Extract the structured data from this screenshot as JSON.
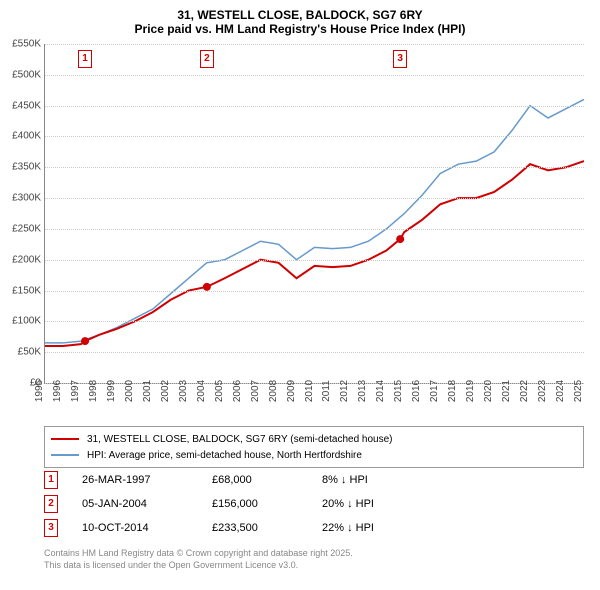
{
  "title_line1": "31, WESTELL CLOSE, BALDOCK, SG7 6RY",
  "title_line2": "Price paid vs. HM Land Registry's House Price Index (HPI)",
  "chart": {
    "type": "line",
    "background_color": "#ffffff",
    "grid_color": "#cccccc",
    "axis_color": "#888888",
    "x_range": [
      1995,
      2025
    ],
    "y_range": [
      0,
      550000
    ],
    "y_ticks": [
      0,
      50000,
      100000,
      150000,
      200000,
      250000,
      300000,
      350000,
      400000,
      450000,
      500000,
      550000
    ],
    "y_tick_labels": [
      "£0",
      "£50K",
      "£100K",
      "£150K",
      "£200K",
      "£250K",
      "£300K",
      "£350K",
      "£400K",
      "£450K",
      "£500K",
      "£550K"
    ],
    "x_ticks": [
      1995,
      1996,
      1997,
      1998,
      1999,
      2000,
      2001,
      2002,
      2003,
      2004,
      2005,
      2006,
      2007,
      2008,
      2009,
      2010,
      2011,
      2012,
      2013,
      2014,
      2015,
      2016,
      2017,
      2018,
      2019,
      2020,
      2021,
      2022,
      2023,
      2024,
      2025
    ],
    "series": [
      {
        "name": "price_paid",
        "label": "31, WESTELL CLOSE, BALDOCK, SG7 6RY (semi-detached house)",
        "color": "#d00000",
        "width": 2,
        "points": [
          [
            1995,
            60000
          ],
          [
            1996,
            60000
          ],
          [
            1997,
            63000
          ],
          [
            1997.23,
            68000
          ],
          [
            1998,
            78000
          ],
          [
            1999,
            88000
          ],
          [
            2000,
            100000
          ],
          [
            2001,
            115000
          ],
          [
            2002,
            135000
          ],
          [
            2003,
            150000
          ],
          [
            2004.01,
            156000
          ],
          [
            2005,
            170000
          ],
          [
            2006,
            185000
          ],
          [
            2007,
            200000
          ],
          [
            2008,
            195000
          ],
          [
            2009,
            170000
          ],
          [
            2010,
            190000
          ],
          [
            2011,
            188000
          ],
          [
            2012,
            190000
          ],
          [
            2013,
            200000
          ],
          [
            2014,
            215000
          ],
          [
            2014.77,
            233500
          ],
          [
            2015,
            245000
          ],
          [
            2016,
            265000
          ],
          [
            2017,
            290000
          ],
          [
            2018,
            300000
          ],
          [
            2019,
            300000
          ],
          [
            2020,
            310000
          ],
          [
            2021,
            330000
          ],
          [
            2022,
            355000
          ],
          [
            2023,
            345000
          ],
          [
            2024,
            350000
          ],
          [
            2025,
            360000
          ]
        ]
      },
      {
        "name": "hpi",
        "label": "HPI: Average price, semi-detached house, North Hertfordshire",
        "color": "#6699cc",
        "width": 1.5,
        "points": [
          [
            1995,
            65000
          ],
          [
            1996,
            65000
          ],
          [
            1997,
            68000
          ],
          [
            1998,
            78000
          ],
          [
            1999,
            90000
          ],
          [
            2000,
            105000
          ],
          [
            2001,
            120000
          ],
          [
            2002,
            145000
          ],
          [
            2003,
            170000
          ],
          [
            2004,
            195000
          ],
          [
            2005,
            200000
          ],
          [
            2006,
            215000
          ],
          [
            2007,
            230000
          ],
          [
            2008,
            225000
          ],
          [
            2009,
            200000
          ],
          [
            2010,
            220000
          ],
          [
            2011,
            218000
          ],
          [
            2012,
            220000
          ],
          [
            2013,
            230000
          ],
          [
            2014,
            250000
          ],
          [
            2015,
            275000
          ],
          [
            2016,
            305000
          ],
          [
            2017,
            340000
          ],
          [
            2018,
            355000
          ],
          [
            2019,
            360000
          ],
          [
            2020,
            375000
          ],
          [
            2021,
            410000
          ],
          [
            2022,
            450000
          ],
          [
            2023,
            430000
          ],
          [
            2024,
            445000
          ],
          [
            2025,
            460000
          ]
        ]
      }
    ],
    "sale_markers": [
      {
        "n": "1",
        "x": 1997.23,
        "y": 68000
      },
      {
        "n": "2",
        "x": 2004.01,
        "y": 156000
      },
      {
        "n": "3",
        "x": 2014.77,
        "y": 233500
      }
    ]
  },
  "legend": [
    {
      "color": "#d00000",
      "label": "31, WESTELL CLOSE, BALDOCK, SG7 6RY (semi-detached house)"
    },
    {
      "color": "#6699cc",
      "label": "HPI: Average price, semi-detached house, North Hertfordshire"
    }
  ],
  "sales": [
    {
      "n": "1",
      "date": "26-MAR-1997",
      "price": "£68,000",
      "delta": "8% ↓ HPI"
    },
    {
      "n": "2",
      "date": "05-JAN-2004",
      "price": "£156,000",
      "delta": "20% ↓ HPI"
    },
    {
      "n": "3",
      "date": "10-OCT-2014",
      "price": "£233,500",
      "delta": "22% ↓ HPI"
    }
  ],
  "footer_line1": "Contains HM Land Registry data © Crown copyright and database right 2025.",
  "footer_line2": "This data is licensed under the Open Government Licence v3.0."
}
